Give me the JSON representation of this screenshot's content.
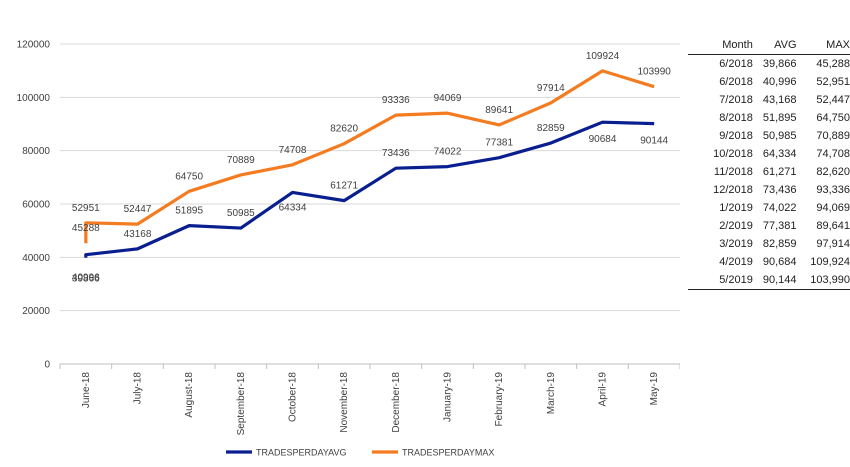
{
  "chart_data": {
    "type": "line",
    "categories": [
      "June-18",
      "July-18",
      "August-18",
      "September-18",
      "October-18",
      "November-18",
      "December-18",
      "January-19",
      "February-19",
      "March-19",
      "April-19",
      "May-19"
    ],
    "ylim": [
      0,
      120000
    ],
    "yticks": [
      "0",
      "20000",
      "40000",
      "60000",
      "80000",
      "100000",
      "120000"
    ],
    "grid": true,
    "legend_position": "bottom",
    "extra_first_points": {
      "TRADESPERDAYAVG": {
        "value": 39866,
        "label": "39866"
      },
      "TRADESPERDAYMAX": {
        "value": 45288,
        "label": "45288"
      }
    },
    "series": [
      {
        "name": "TRADESPERDAYAVG",
        "color": "#0a1f8f",
        "values": [
          40996,
          43168,
          51895,
          50985,
          64334,
          61271,
          73436,
          74022,
          77381,
          82859,
          90684,
          90144
        ],
        "labels": [
          "40996",
          "43168",
          "51895",
          "50985",
          "64334",
          "61271",
          "73436",
          "74022",
          "77381",
          "82859",
          "90684",
          "90144"
        ]
      },
      {
        "name": "TRADESPERDAYMAX",
        "color": "#f47b20",
        "values": [
          52951,
          52447,
          64750,
          70889,
          74708,
          82620,
          93336,
          94069,
          89641,
          97914,
          109924,
          103990
        ],
        "labels": [
          "52951",
          "52447",
          "64750",
          "70889",
          "74708",
          "82620",
          "93336",
          "94069",
          "89641",
          "97914",
          "109924",
          "103990"
        ]
      }
    ]
  },
  "table": {
    "headers": {
      "month": "Month",
      "avg": "AVG",
      "max": "MAX"
    },
    "rows": [
      {
        "month": "6/2018",
        "avg": "39,866",
        "max": "45,288"
      },
      {
        "month": "6/2018",
        "avg": "40,996",
        "max": "52,951"
      },
      {
        "month": "7/2018",
        "avg": "43,168",
        "max": "52,447"
      },
      {
        "month": "8/2018",
        "avg": "51,895",
        "max": "64,750"
      },
      {
        "month": "9/2018",
        "avg": "50,985",
        "max": "70,889"
      },
      {
        "month": "10/2018",
        "avg": "64,334",
        "max": "74,708"
      },
      {
        "month": "11/2018",
        "avg": "61,271",
        "max": "82,620"
      },
      {
        "month": "12/2018",
        "avg": "73,436",
        "max": "93,336"
      },
      {
        "month": "1/2019",
        "avg": "74,022",
        "max": "94,069"
      },
      {
        "month": "2/2019",
        "avg": "77,381",
        "max": "89,641"
      },
      {
        "month": "3/2019",
        "avg": "82,859",
        "max": "97,914"
      },
      {
        "month": "4/2019",
        "avg": "90,684",
        "max": "109,924"
      },
      {
        "month": "5/2019",
        "avg": "90,144",
        "max": "103,990"
      }
    ]
  }
}
